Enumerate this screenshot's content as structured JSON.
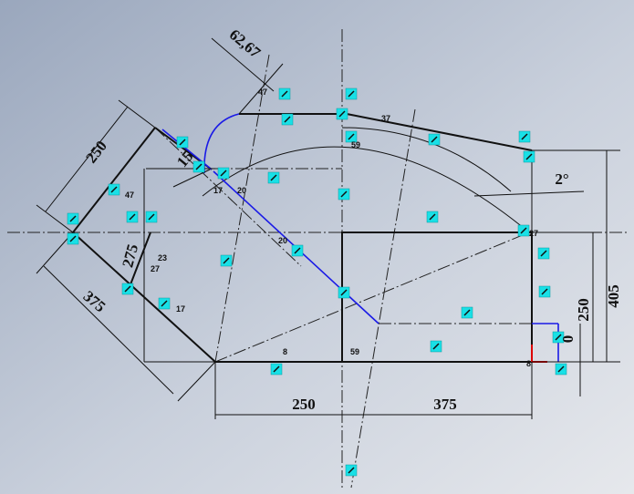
{
  "dimensions": [
    "62,67",
    "250",
    "15",
    "275",
    "375",
    "2°",
    "405",
    "250",
    "0",
    "250",
    "375"
  ],
  "relation_labels": [
    "47",
    "47",
    "17",
    "20",
    "20",
    "23",
    "27",
    "17",
    "59",
    "59",
    "8",
    "8",
    "27",
    "37"
  ]
}
